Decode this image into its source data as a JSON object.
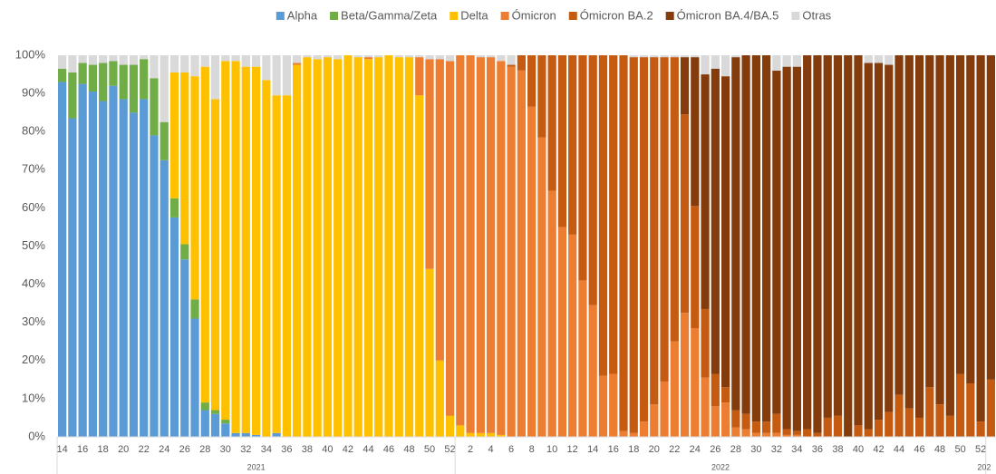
{
  "chart_data": {
    "type": "stacked_bar_100",
    "categories": [
      "14",
      null,
      "16",
      null,
      "18",
      null,
      "20",
      null,
      "22",
      null,
      "24",
      null,
      "26",
      null,
      "28",
      null,
      "30",
      null,
      "32",
      null,
      "34",
      null,
      "36",
      null,
      "38",
      null,
      "40",
      null,
      "42",
      null,
      "44",
      null,
      "46",
      null,
      "48",
      null,
      "50",
      null,
      "52",
      null,
      "2",
      null,
      "4",
      null,
      "6",
      null,
      "8",
      null,
      "10",
      null,
      "12",
      null,
      "14",
      null,
      "16",
      null,
      "18",
      null,
      "20",
      null,
      "22",
      null,
      "24",
      null,
      "26",
      null,
      "28",
      null,
      "30",
      null,
      "32",
      null,
      "34",
      null,
      "36",
      null,
      "38",
      null,
      "40",
      null,
      "42",
      null,
      "44",
      null,
      "46",
      null,
      "48",
      null,
      "50",
      null,
      "52",
      null
    ],
    "year_labels": [
      "2021",
      "2022",
      "202"
    ],
    "ylim": [
      0,
      100
    ],
    "yticks": [
      {
        "value": 0,
        "label": "0%"
      },
      {
        "value": 10,
        "label": "10%"
      },
      {
        "value": 20,
        "label": "20%"
      },
      {
        "value": 30,
        "label": "30%"
      },
      {
        "value": 40,
        "label": "40%"
      },
      {
        "value": 50,
        "label": "50%"
      },
      {
        "value": 60,
        "label": "60%"
      },
      {
        "value": 70,
        "label": "70%"
      },
      {
        "value": 80,
        "label": "80%"
      },
      {
        "value": 90,
        "label": "90%"
      },
      {
        "value": 100,
        "label": "100%"
      }
    ],
    "legend_position": "top",
    "series": [
      {
        "name": "Alpha",
        "color": "#5b9bd5",
        "values": [
          93,
          83.5,
          92.5,
          90.5,
          88,
          92,
          88.5,
          85,
          88.5,
          79,
          72.5,
          57.5,
          46.5,
          31,
          7,
          6,
          3.5,
          1,
          1,
          0.5,
          0,
          1,
          0,
          0,
          0,
          0,
          0,
          0,
          0,
          0,
          0,
          0,
          0,
          0,
          0,
          0,
          0,
          0,
          0,
          0,
          0,
          0,
          0,
          0,
          0,
          0,
          0,
          0,
          0,
          0,
          0,
          0,
          0,
          0,
          0,
          0,
          0,
          0,
          0,
          0,
          0,
          0,
          0,
          0,
          0,
          0,
          0,
          0,
          0,
          0,
          0,
          0,
          0,
          0,
          0,
          0,
          0,
          0,
          0,
          0,
          0,
          0,
          0,
          0,
          0,
          0,
          0,
          0,
          0,
          0,
          0,
          0
        ]
      },
      {
        "name": "Beta/Gamma/Zeta",
        "color": "#70ad47",
        "values": [
          3.5,
          12,
          5.5,
          7,
          10,
          6.5,
          9,
          12.5,
          10.5,
          15,
          10,
          5,
          4,
          5,
          2,
          1,
          1,
          0,
          0,
          0,
          0,
          0,
          0,
          0,
          0,
          0,
          0,
          0,
          0,
          0,
          0,
          0,
          0,
          0,
          0,
          0,
          0,
          0,
          0,
          0,
          0,
          0,
          0,
          0,
          0,
          0,
          0,
          0,
          0,
          0,
          0,
          0,
          0,
          0,
          0,
          0,
          0,
          0,
          0,
          0,
          0,
          0,
          0,
          0,
          0,
          0,
          0,
          0,
          0,
          0,
          0,
          0,
          0,
          0,
          0,
          0,
          0,
          0,
          0,
          0,
          0,
          0,
          0,
          0,
          0,
          0,
          0,
          0,
          0,
          0,
          0,
          0
        ]
      },
      {
        "name": "Delta",
        "color": "#ffc000",
        "values": [
          0,
          0,
          0,
          0,
          0,
          0,
          0,
          0,
          0,
          0,
          0,
          33,
          45,
          58.5,
          88,
          81.5,
          94,
          97.5,
          96,
          96.5,
          93.5,
          88.5,
          89.5,
          97.5,
          99.5,
          99,
          99.5,
          99,
          100,
          99.5,
          99,
          99.5,
          100,
          99.5,
          99.5,
          89.5,
          44,
          20,
          5.5,
          3,
          1,
          1,
          1,
          0.5,
          0,
          0,
          0,
          0,
          0,
          0,
          0,
          0,
          0,
          0,
          0,
          0,
          0,
          0,
          0,
          0,
          0,
          0,
          0,
          0,
          0,
          0,
          0,
          0,
          0,
          0,
          0,
          0,
          0,
          0,
          0,
          0,
          0,
          0,
          0,
          0,
          0,
          0,
          0,
          0,
          0,
          0,
          0,
          0,
          0,
          0,
          0,
          0
        ]
      },
      {
        "name": "Ómicron",
        "color": "#ed7d31",
        "values": [
          0,
          0,
          0,
          0,
          0,
          0,
          0,
          0,
          0,
          0,
          0,
          0,
          0,
          0,
          0,
          0,
          0,
          0,
          0,
          0,
          0,
          0,
          0,
          0.5,
          0,
          0,
          0,
          0,
          0,
          0,
          0.5,
          0,
          0,
          0,
          0,
          10,
          55,
          79,
          93,
          97,
          99,
          98.5,
          98.5,
          98,
          97,
          96,
          86.5,
          78.5,
          64.5,
          55,
          53,
          41,
          34.5,
          16,
          16.5,
          1.5,
          1,
          4,
          8.5,
          14.5,
          25,
          32.5,
          28.5,
          15.5,
          8,
          9,
          2.5,
          2,
          1,
          1,
          1,
          0.5,
          0.5,
          0,
          0,
          0,
          0,
          0,
          0,
          0,
          0,
          0,
          0,
          0,
          0,
          0,
          0,
          0,
          0,
          0,
          0,
          0
        ]
      },
      {
        "name": "Ómicron BA.2",
        "color": "#c55a11",
        "values": [
          0,
          0,
          0,
          0,
          0,
          0,
          0,
          0,
          0,
          0,
          0,
          0,
          0,
          0,
          0,
          0,
          0,
          0,
          0,
          0,
          0,
          0,
          0,
          0,
          0,
          0,
          0,
          0,
          0,
          0,
          0,
          0,
          0,
          0,
          0,
          0,
          0,
          0,
          0,
          0,
          0,
          0,
          0,
          0,
          0.5,
          4,
          13.5,
          21.5,
          35.5,
          45,
          47,
          59,
          65.5,
          84,
          83.5,
          98.5,
          98.5,
          95.5,
          91,
          85,
          74.5,
          52,
          32,
          18,
          8.5,
          4,
          4.5,
          4,
          3,
          3,
          5,
          1.5,
          1,
          2,
          1,
          5,
          5.5,
          0,
          3,
          2,
          4.5,
          6.5,
          11,
          7.5,
          5,
          13,
          8.5,
          5.5,
          16.5,
          14,
          4,
          15
        ]
      },
      {
        "name": "Ómicron BA.4/BA.5",
        "color": "#843c0c",
        "values": [
          0,
          0,
          0,
          0,
          0,
          0,
          0,
          0,
          0,
          0,
          0,
          0,
          0,
          0,
          0,
          0,
          0,
          0,
          0,
          0,
          0,
          0,
          0,
          0,
          0,
          0,
          0,
          0,
          0,
          0,
          0,
          0,
          0,
          0,
          0,
          0,
          0,
          0,
          0,
          0,
          0,
          0,
          0,
          0,
          0,
          0,
          0,
          0,
          0,
          0,
          0,
          0,
          0,
          0,
          0,
          0,
          0,
          0,
          0,
          0,
          0,
          15,
          39,
          61.5,
          80,
          81.5,
          92.5,
          94,
          96,
          96,
          90,
          95,
          95.5,
          98,
          99,
          95,
          94.5,
          100,
          97,
          96,
          93.5,
          91,
          89,
          92.5,
          95,
          87,
          91.5,
          94.5,
          83.5,
          86,
          96,
          85
        ]
      },
      {
        "name": "Otras",
        "color": "#d9d9d9",
        "values": [
          3.5,
          4.5,
          2,
          2.5,
          2,
          1.5,
          2.5,
          2.5,
          1,
          6,
          17.5,
          4.5,
          4.5,
          5.5,
          3,
          11.5,
          1.5,
          1.5,
          3,
          3,
          6.5,
          10.5,
          10.5,
          2,
          0.5,
          1,
          0.5,
          1,
          0,
          0.5,
          0.5,
          0.5,
          0,
          0.5,
          0.5,
          0.5,
          1,
          1,
          1.5,
          0,
          0,
          0.5,
          0.5,
          1.5,
          2.5,
          0,
          0,
          0,
          0,
          0,
          0,
          0,
          0,
          0,
          0,
          0,
          0.5,
          0.5,
          0.5,
          0.5,
          0.5,
          0.5,
          0.5,
          5,
          3.5,
          5.5,
          0.5,
          0,
          0,
          0,
          4,
          3,
          3,
          0,
          0,
          0,
          0,
          0,
          0,
          2,
          2,
          2.5,
          0,
          0,
          0,
          0,
          0,
          0,
          0,
          0,
          0,
          0
        ]
      }
    ]
  }
}
